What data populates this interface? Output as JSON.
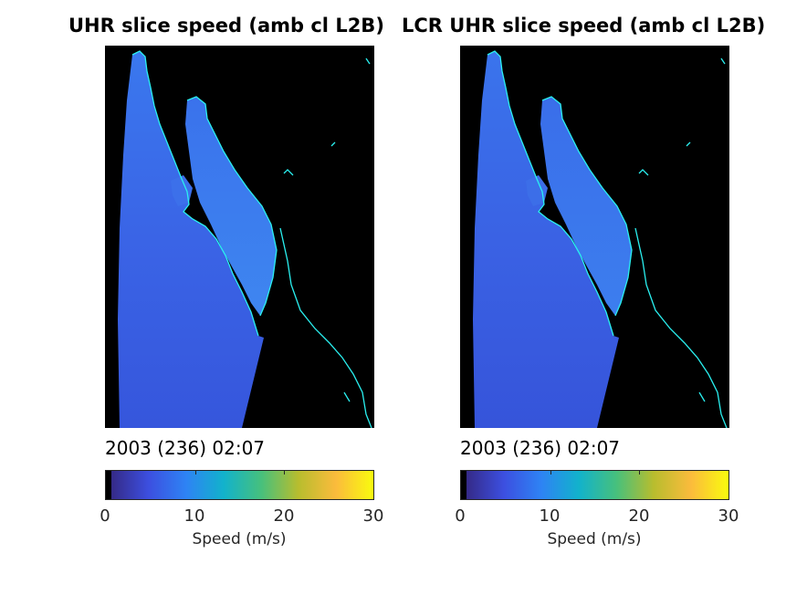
{
  "colormap": {
    "stops": [
      "#000000",
      "#352a87",
      "#3c4fe0",
      "#2e83f4",
      "#12b2cc",
      "#46c07d",
      "#b8bd2e",
      "#fbbb3c",
      "#f9fb0e"
    ],
    "speed_min": 0,
    "speed_max": 30
  },
  "panels": [
    {
      "title": "UHR slice speed (amb cl L2B)",
      "timestamp": "2003 (236) 02:07",
      "colorbar": {
        "ticks": [
          "0",
          "10",
          "20",
          "30"
        ],
        "label": "Speed (m/s)"
      }
    },
    {
      "title": "LCR UHR slice speed (amb cl L2B)",
      "timestamp": "2003 (236) 02:07",
      "colorbar": {
        "ticks": [
          "0",
          "10",
          "20",
          "30"
        ],
        "label": "Speed (m/s)"
      }
    }
  ]
}
